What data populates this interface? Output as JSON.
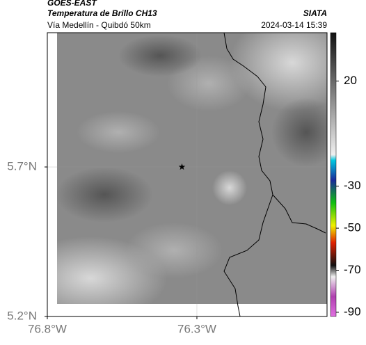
{
  "header": {
    "satellite": "GOES-EAST",
    "title": "Temperatura de Brillo CH13",
    "subtitle": "Vía Medellín - Quibdó 50km",
    "source": "SIATA",
    "datetime": "2024-03-14 15:39"
  },
  "map": {
    "xlim": [
      -76.8,
      -75.865
    ],
    "ylim": [
      5.2,
      6.149
    ],
    "xticks": [
      {
        "value": -76.8,
        "label": "76.8°W"
      },
      {
        "value": -76.3,
        "label": "76.3°W"
      }
    ],
    "yticks": [
      {
        "value": 5.2,
        "label": "5.2°N"
      },
      {
        "value": 5.7,
        "label": "5.7°N"
      }
    ],
    "grid": true,
    "marker": {
      "lon": -76.35,
      "lat": 5.7
    }
  },
  "colorbar": {
    "lim": [
      -92,
      43
    ],
    "ticks": [
      20,
      -30,
      -50,
      -70,
      -90
    ]
  }
}
